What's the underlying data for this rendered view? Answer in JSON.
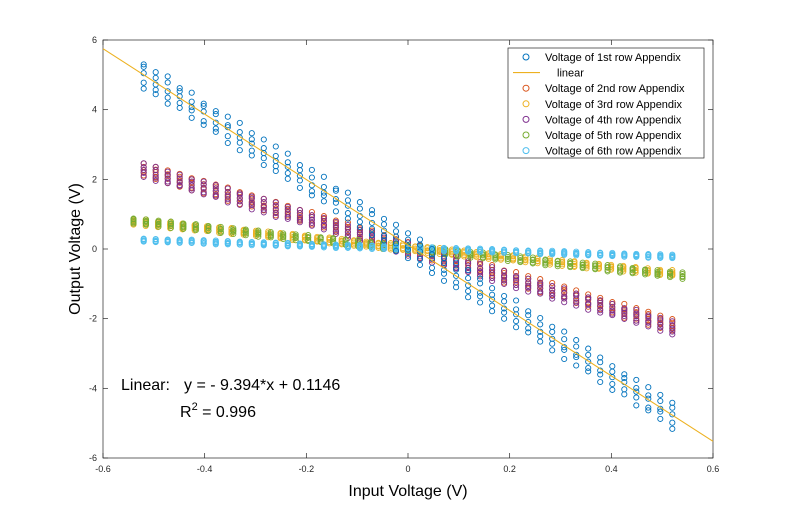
{
  "chart_data": {
    "type": "scatter",
    "title": "",
    "xlabel": "Input Voltage (V)",
    "ylabel": "Output Voltage (V)",
    "xlim": [
      -0.6,
      0.6
    ],
    "ylim": [
      -6,
      6
    ],
    "x_ticks": [
      "-0.6",
      "-0.4",
      "-0.2",
      "0",
      "0.2",
      "0.4",
      "0.6"
    ],
    "y_ticks": [
      "-6",
      "-4",
      "-2",
      "0",
      "2",
      "4",
      "6"
    ],
    "grid": false,
    "legend_position": "top-right",
    "series": [
      {
        "name": "Voltage of 1st row Appendix",
        "color": "#0072BD",
        "marker": "circle",
        "x_range": [
          -0.52,
          0.52
        ],
        "slope": -9.394,
        "intercept": 0.1146
      },
      {
        "name": "linear",
        "color": "#EDB120",
        "type": "line",
        "x_range": [
          -0.6,
          0.6
        ],
        "slope": -9.394,
        "intercept": 0.1146
      },
      {
        "name": "Voltage of 2nd row Appendix",
        "color": "#D95319",
        "marker": "circle",
        "x_range": [
          -0.52,
          0.52
        ],
        "slope": -4.3,
        "intercept": 0.05
      },
      {
        "name": "Voltage of 3rd row Appendix",
        "color": "#EDB120",
        "marker": "circle",
        "x_range": [
          -0.54,
          0.52
        ],
        "slope": -1.4,
        "intercept": 0.03
      },
      {
        "name": "Voltage of 4th row Appendix",
        "color": "#7E2F8E",
        "marker": "circle",
        "x_range": [
          -0.52,
          0.52
        ],
        "slope": -4.35,
        "intercept": 0.0
      },
      {
        "name": "Voltage of 5th row Appendix",
        "color": "#77AC30",
        "marker": "circle",
        "x_range": [
          -0.54,
          0.54
        ],
        "slope": -1.45,
        "intercept": 0.02
      },
      {
        "name": "Voltage of 6th row Appendix",
        "color": "#4DBEEE",
        "marker": "circle",
        "x_range": [
          -0.52,
          0.52
        ],
        "slope": -0.45,
        "intercept": 0.02
      }
    ],
    "annotation": {
      "linear_label": "Linear:",
      "equation": "y = - 9.394*x + 0.1146",
      "r2_base": "R",
      "r2_sup": "2",
      "r2_value": " = 0.996"
    }
  }
}
